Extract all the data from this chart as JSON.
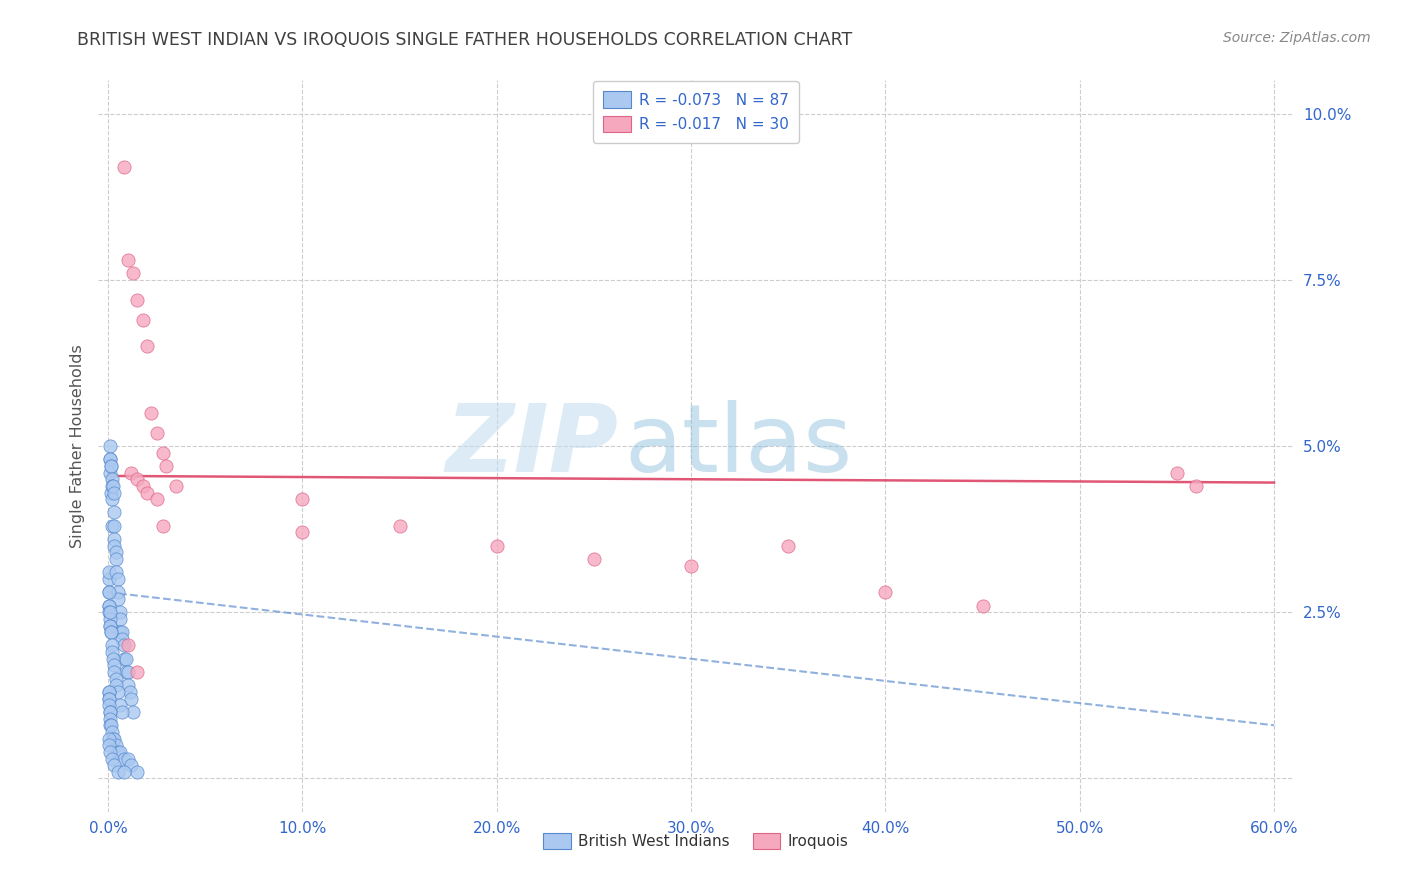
{
  "title": "BRITISH WEST INDIAN VS IROQUOIS SINGLE FATHER HOUSEHOLDS CORRELATION CHART",
  "source": "Source: ZipAtlas.com",
  "ylabel": "Single Father Households",
  "xlim": [
    -0.005,
    0.61
  ],
  "ylim": [
    -0.005,
    0.105
  ],
  "xticks": [
    0.0,
    0.1,
    0.2,
    0.3,
    0.4,
    0.5,
    0.6
  ],
  "yticks": [
    0.0,
    0.025,
    0.05,
    0.075,
    0.1
  ],
  "xtick_labels": [
    "0.0%",
    "10.0%",
    "20.0%",
    "30.0%",
    "40.0%",
    "50.0%",
    "60.0%"
  ],
  "ytick_labels": [
    "",
    "2.5%",
    "5.0%",
    "7.5%",
    "10.0%"
  ],
  "watermark_zip": "ZIP",
  "watermark_atlas": "atlas",
  "bwi_color": "#aac8f0",
  "iroquois_color": "#f5a8be",
  "bwi_edge_color": "#5588cc",
  "iroquois_edge_color": "#dd6688",
  "bwi_line_color": "#5588cc",
  "iroquois_line_color": "#dd4466",
  "grid_color": "#c8c8c8",
  "title_color": "#404040",
  "axis_tick_color": "#3366cc",
  "legend_label_color": "#3366cc",
  "source_color": "#888888",
  "ylabel_color": "#555555",
  "bwi_x": [
    0.0003,
    0.0005,
    0.0007,
    0.001,
    0.001,
    0.001,
    0.0012,
    0.0013,
    0.0015,
    0.0015,
    0.002,
    0.002,
    0.002,
    0.002,
    0.0025,
    0.003,
    0.003,
    0.003,
    0.003,
    0.003,
    0.004,
    0.004,
    0.004,
    0.005,
    0.005,
    0.005,
    0.006,
    0.006,
    0.006,
    0.007,
    0.007,
    0.008,
    0.008,
    0.009,
    0.009,
    0.01,
    0.01,
    0.011,
    0.012,
    0.013,
    0.0003,
    0.0005,
    0.0006,
    0.0007,
    0.0008,
    0.001,
    0.001,
    0.0012,
    0.0013,
    0.0015,
    0.002,
    0.002,
    0.0025,
    0.003,
    0.003,
    0.004,
    0.004,
    0.005,
    0.006,
    0.007,
    0.0003,
    0.0004,
    0.0005,
    0.0006,
    0.0007,
    0.0008,
    0.001,
    0.001,
    0.0012,
    0.0015,
    0.002,
    0.0025,
    0.003,
    0.004,
    0.005,
    0.006,
    0.008,
    0.01,
    0.012,
    0.015,
    0.0003,
    0.0005,
    0.001,
    0.002,
    0.003,
    0.005,
    0.008
  ],
  "bwi_y": [
    0.03,
    0.031,
    0.028,
    0.048,
    0.046,
    0.05,
    0.048,
    0.047,
    0.043,
    0.047,
    0.045,
    0.044,
    0.042,
    0.038,
    0.044,
    0.043,
    0.04,
    0.038,
    0.036,
    0.035,
    0.034,
    0.033,
    0.031,
    0.03,
    0.028,
    0.027,
    0.025,
    0.024,
    0.022,
    0.022,
    0.021,
    0.02,
    0.018,
    0.018,
    0.016,
    0.016,
    0.014,
    0.013,
    0.012,
    0.01,
    0.028,
    0.026,
    0.026,
    0.025,
    0.024,
    0.025,
    0.023,
    0.023,
    0.022,
    0.022,
    0.02,
    0.019,
    0.018,
    0.017,
    0.016,
    0.015,
    0.014,
    0.013,
    0.011,
    0.01,
    0.013,
    0.013,
    0.012,
    0.012,
    0.011,
    0.01,
    0.01,
    0.009,
    0.008,
    0.008,
    0.007,
    0.006,
    0.006,
    0.005,
    0.004,
    0.004,
    0.003,
    0.003,
    0.002,
    0.001,
    0.006,
    0.005,
    0.004,
    0.003,
    0.002,
    0.001,
    0.001
  ],
  "iroquois_x": [
    0.008,
    0.01,
    0.013,
    0.015,
    0.018,
    0.02,
    0.022,
    0.025,
    0.028,
    0.03,
    0.012,
    0.015,
    0.018,
    0.02,
    0.025,
    0.028,
    0.1,
    0.15,
    0.2,
    0.25,
    0.3,
    0.35,
    0.4,
    0.45,
    0.55,
    0.56,
    0.01,
    0.015,
    0.035,
    0.1
  ],
  "iroquois_y": [
    0.092,
    0.078,
    0.076,
    0.072,
    0.069,
    0.065,
    0.055,
    0.052,
    0.049,
    0.047,
    0.046,
    0.045,
    0.044,
    0.043,
    0.042,
    0.038,
    0.042,
    0.038,
    0.035,
    0.033,
    0.032,
    0.035,
    0.028,
    0.026,
    0.046,
    0.044,
    0.02,
    0.016,
    0.044,
    0.037
  ],
  "iroquois_trend_y0": 0.0455,
  "iroquois_trend_y1": 0.0445,
  "bwi_trend_x0": 0.0,
  "bwi_trend_y0": 0.028,
  "bwi_trend_x1": 0.6,
  "bwi_trend_y1": 0.008
}
